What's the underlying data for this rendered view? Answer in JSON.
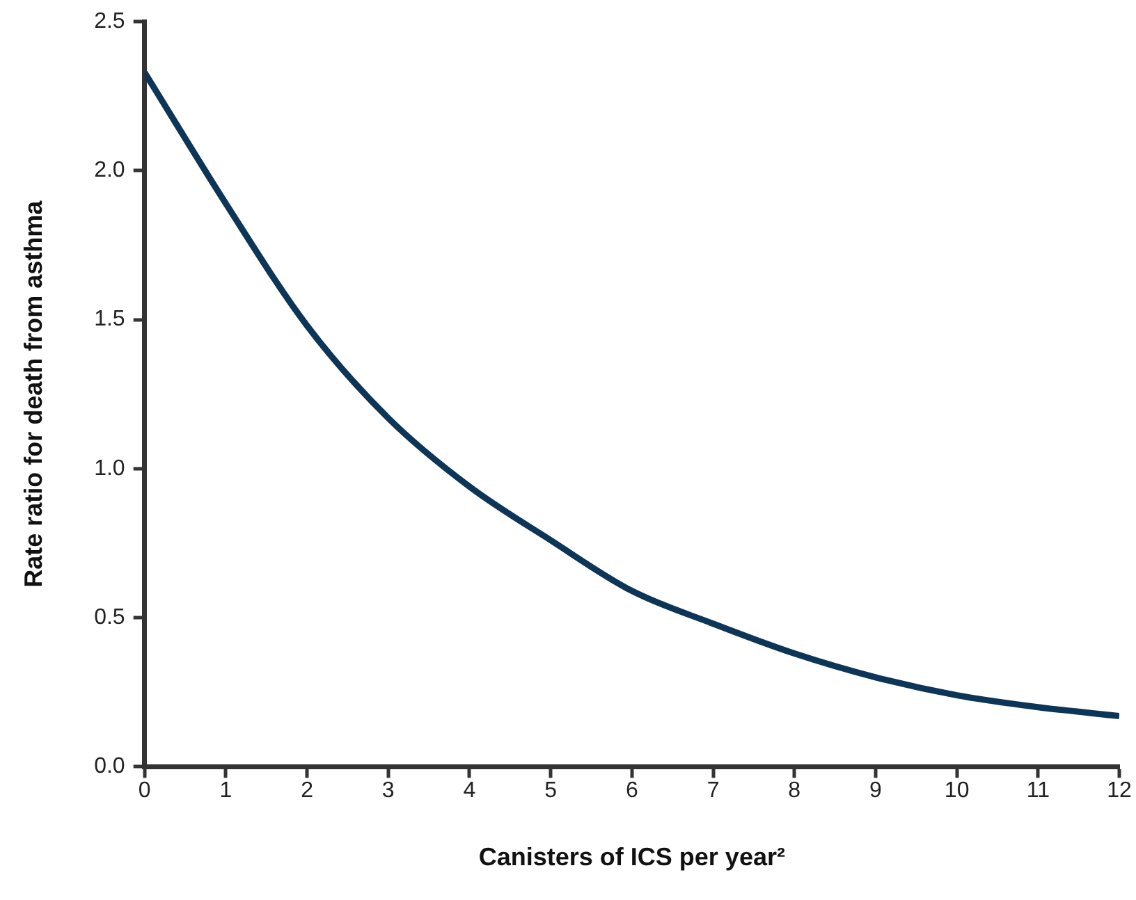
{
  "chart_data": {
    "type": "line",
    "xlabel": "Canisters of ICS per year²",
    "ylabel": "Rate ratio for death from asthma",
    "x": [
      0,
      1,
      2,
      3,
      4,
      5,
      6,
      7,
      8,
      9,
      10,
      11,
      12
    ],
    "series": [
      {
        "color": "#0d3557",
        "values": [
          2.33,
          1.89,
          1.48,
          1.17,
          0.94,
          0.76,
          0.59,
          0.48,
          0.38,
          0.3,
          0.24,
          0.2,
          0.17
        ]
      }
    ],
    "xlim": [
      0,
      12
    ],
    "xticks": [
      0,
      1,
      2,
      3,
      4,
      5,
      6,
      7,
      8,
      9,
      10,
      11,
      12
    ],
    "ylim": [
      0,
      2.5
    ],
    "yticks": [
      {
        "value": 0,
        "label": "0.0"
      },
      {
        "value": 0.5,
        "label": "0.5"
      },
      {
        "value": 1,
        "label": "1.0"
      },
      {
        "value": 1.5,
        "label": "1.5"
      },
      {
        "value": 2,
        "label": "2.0"
      },
      {
        "value": 2.5,
        "label": "2.5"
      }
    ],
    "grid": false,
    "legend": false,
    "marker": "none",
    "line_style": "solid"
  }
}
